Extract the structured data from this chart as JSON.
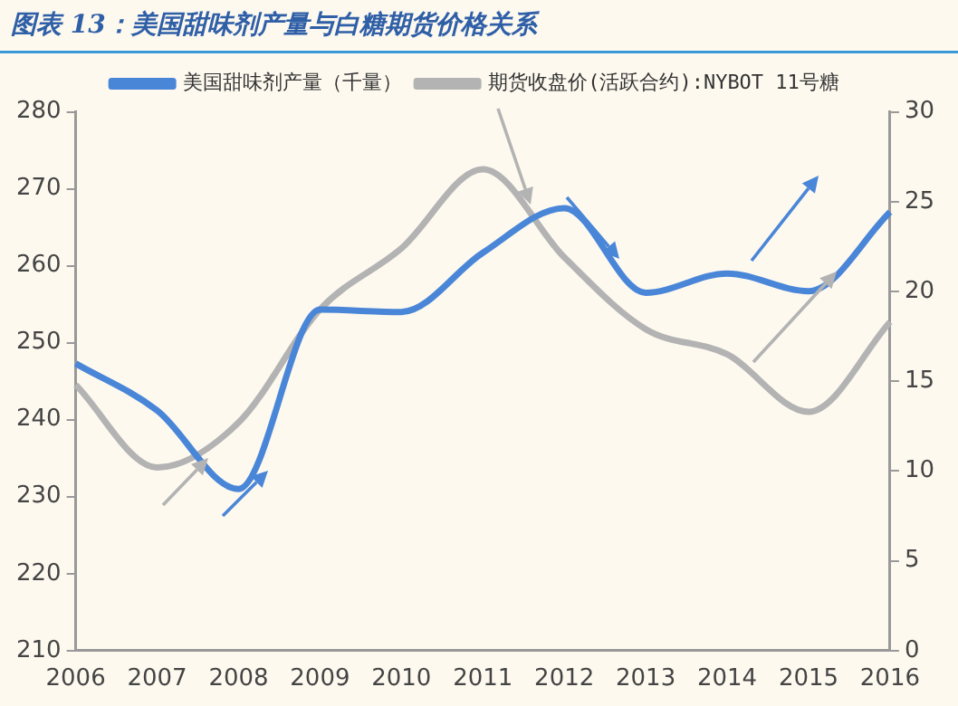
{
  "chart_data": {
    "type": "line",
    "title": "图表 13：美国甜味剂产量与白糖期货价格关系",
    "categories": [
      "2006",
      "2007",
      "2008",
      "2009",
      "2010",
      "2011",
      "2012",
      "2013",
      "2014",
      "2015",
      "2016"
    ],
    "series": [
      {
        "name": "美国甜味剂产量（千量）",
        "color": "#4a86d8",
        "values": [
          247.3,
          241.2,
          231,
          254.3,
          254,
          261.7,
          267.5,
          256.5,
          259,
          256.7,
          267
        ]
      },
      {
        "name": "期货收盘价(活跃合约):NYBOT 11号糖",
        "color": "#b3b3b3",
        "axis": "y2",
        "values": [
          14.8,
          10.2,
          12.7,
          19,
          22.4,
          26.8,
          21.9,
          17.9,
          16.5,
          13.3,
          18.3
        ]
      }
    ],
    "ylim": [
      210,
      280
    ],
    "yticks": [
      210,
      220,
      230,
      240,
      250,
      260,
      270,
      280
    ],
    "y2lim": [
      0,
      30
    ],
    "y2ticks": [
      0,
      5,
      10,
      15,
      20,
      25,
      30
    ],
    "grid": false,
    "legend": "top",
    "marker": "none",
    "line_style": "solid"
  }
}
